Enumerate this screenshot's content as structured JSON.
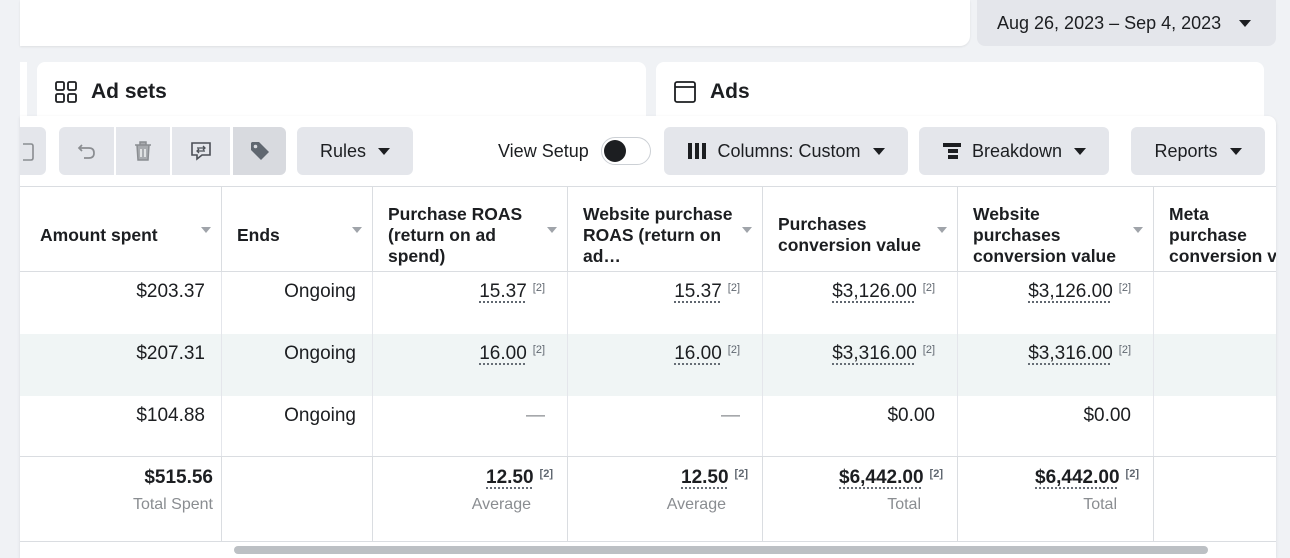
{
  "date_range": {
    "label": "Aug 26, 2023 – Sep 4, 2023"
  },
  "tabs": [
    {
      "label": "Ad sets",
      "icon": "grid-icon"
    },
    {
      "label": "Ads",
      "icon": "ad-frame-icon"
    }
  ],
  "toolbar": {
    "rules_label": "Rules",
    "view_setup_label": "View Setup",
    "view_setup_on": false,
    "columns_label": "Columns: Custom",
    "breakdown_label": "Breakdown",
    "reports_label": "Reports"
  },
  "table": {
    "headers": [
      "Amount spent",
      "Ends",
      "Purchase ROAS (return on ad spend)",
      "Website purchase ROAS (return on ad…",
      "Purchases conversion value",
      "Website purchases conversion value",
      "Meta purchase conversion v"
    ],
    "rows": [
      {
        "amount": "$203.37",
        "ends": "Ongoing",
        "roas": "15.37",
        "web_roas": "15.37",
        "conv": "$3,126.00",
        "web_conv": "$3,126.00"
      },
      {
        "amount": "$207.31",
        "ends": "Ongoing",
        "roas": "16.00",
        "web_roas": "16.00",
        "conv": "$3,316.00",
        "web_conv": "$3,316.00"
      },
      {
        "amount": "$104.88",
        "ends": "Ongoing",
        "roas": "—",
        "web_roas": "—",
        "conv": "$0.00",
        "web_conv": "$0.00"
      }
    ],
    "ref_mark": "[2]",
    "totals": {
      "amount": "$515.56",
      "amount_label": "Total Spent",
      "roas": "12.50",
      "roas_label": "Average",
      "web_roas": "12.50",
      "web_roas_label": "Average",
      "conv": "$6,442.00",
      "conv_label": "Total",
      "web_conv": "$6,442.00",
      "web_conv_label": "Total"
    }
  },
  "colors": {
    "hover_row": "#f0f5f5",
    "button_bg": "#e4e6eb"
  }
}
